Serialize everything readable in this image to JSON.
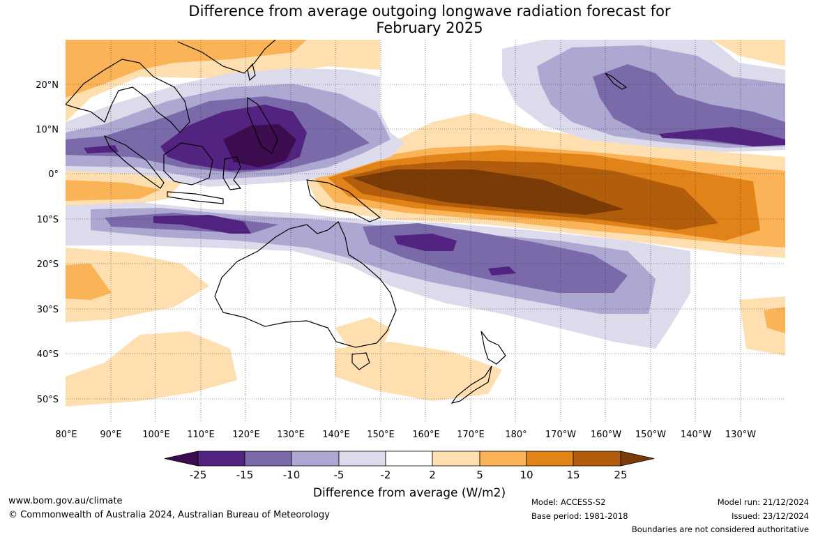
{
  "title": {
    "line1": "Difference from average outgoing longwave radiation forecast for",
    "line2": "February 2025"
  },
  "map": {
    "lat_labels": [
      "20°N",
      "10°N",
      "0°",
      "10°S",
      "20°S",
      "30°S",
      "40°S",
      "50°S"
    ],
    "lon_labels": [
      "80°E",
      "90°E",
      "100°E",
      "110°E",
      "120°E",
      "130°E",
      "140°E",
      "150°E",
      "160°E",
      "170°E",
      "180°",
      "170°W",
      "160°W",
      "150°W",
      "140°W",
      "130°W"
    ],
    "extent": {
      "lon_min": 80,
      "lon_max": 240,
      "lat_min": -55,
      "lat_max": 30
    }
  },
  "colorbar": {
    "ticks": [
      "-25",
      "-15",
      "-10",
      "-5",
      "-2",
      "2",
      "5",
      "10",
      "15",
      "25"
    ],
    "colors": [
      "#3c0c4e",
      "#532382",
      "#7a6aaa",
      "#ada8d2",
      "#dbdbec",
      "#ffffff",
      "#ffdfb0",
      "#fab457",
      "#e28319",
      "#b25d0b",
      "#7a3b07"
    ],
    "label": "Difference from average (W/m2)"
  },
  "footer": {
    "website": "www.bom.gov.au/climate",
    "copyright": "© Commonwealth of Australia 2024, Australian Bureau of Meteorology",
    "model": "Model: ACCESS-S2",
    "base_period": "Base period: 1981-2018",
    "model_run": "Model run: 21/12/2024",
    "issued": "Issued: 23/12/2024",
    "disclaimer": "Boundaries are not considered authoritative"
  }
}
